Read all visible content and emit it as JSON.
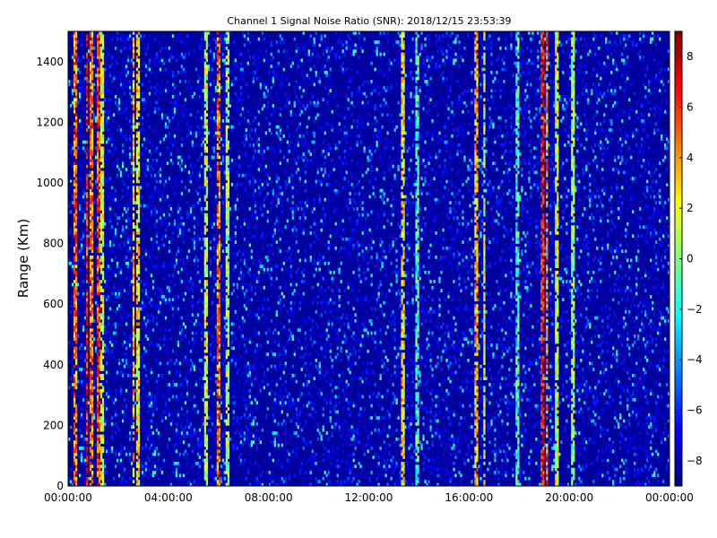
{
  "chart_data": {
    "type": "heatmap",
    "title": "Channel 1 Signal Noise Ratio (SNR): 2018/12/15 23:53:39",
    "xlabel": "",
    "ylabel": "Range (Km)",
    "x_tick_labels": [
      "00:00:00",
      "04:00:00",
      "08:00:00",
      "12:00:00",
      "16:00:00",
      "20:00:00",
      "00:00:00"
    ],
    "x_range_hours": [
      0,
      24
    ],
    "y_ticks": [
      0,
      200,
      400,
      600,
      800,
      1000,
      1200,
      1400
    ],
    "ylim": [
      0,
      1500
    ],
    "colorbar": {
      "ticks": [
        -8,
        -6,
        -4,
        -2,
        0,
        2,
        4,
        6,
        8
      ],
      "range": [
        -9,
        9
      ],
      "colormap": "jet"
    },
    "background_level": -8.5,
    "grid": false,
    "bright_columns_hours": [
      {
        "hour": 0.3,
        "snr": 6
      },
      {
        "hour": 0.75,
        "snr": 8
      },
      {
        "hour": 0.95,
        "snr": 6
      },
      {
        "hour": 1.2,
        "snr": 7
      },
      {
        "hour": 1.35,
        "snr": 3
      },
      {
        "hour": 2.6,
        "snr": 5
      },
      {
        "hour": 2.8,
        "snr": 4
      },
      {
        "hour": 5.5,
        "snr": 3
      },
      {
        "hour": 6.0,
        "snr": 6
      },
      {
        "hour": 6.35,
        "snr": 2
      },
      {
        "hour": 13.35,
        "snr": 4
      },
      {
        "hour": 13.9,
        "snr": 0
      },
      {
        "hour": 16.3,
        "snr": 5
      },
      {
        "hour": 16.6,
        "snr": 3
      },
      {
        "hour": 17.95,
        "snr": 0
      },
      {
        "hour": 18.9,
        "snr": 8
      },
      {
        "hour": 19.1,
        "snr": 6
      },
      {
        "hour": 19.5,
        "snr": 3
      },
      {
        "hour": 20.15,
        "snr": 2
      }
    ]
  }
}
